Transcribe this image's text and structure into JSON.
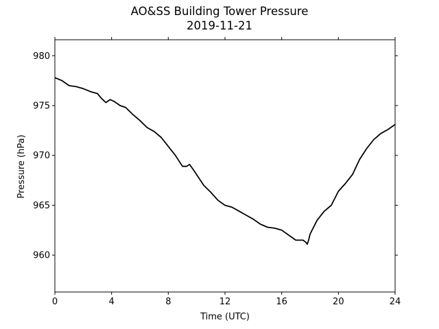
{
  "chart_data": {
    "type": "line",
    "title": "AO&SS Building Tower Pressure",
    "subtitle": "2019-11-21",
    "xlabel": "Time (UTC)",
    "ylabel": "Pressure (hPa)",
    "xlim": [
      0,
      24
    ],
    "ylim": [
      956.3,
      981.6
    ],
    "xticks": [
      0,
      4,
      8,
      12,
      16,
      20,
      24
    ],
    "yticks": [
      960,
      965,
      970,
      975,
      980
    ],
    "grid": false,
    "legend": "none",
    "colors": {
      "line": "#000000",
      "axes": "#000000",
      "background": "#ffffff"
    },
    "series": [
      {
        "x": [
          0,
          0.5,
          1,
          1.5,
          2,
          2.5,
          3,
          3.3,
          3.6,
          3.9,
          4.2,
          4.6,
          5,
          5.5,
          6,
          6.5,
          7,
          7.5,
          8,
          8.5,
          9,
          9.3,
          9.5,
          9.8,
          10.5,
          11,
          11.5,
          12,
          12.5,
          13,
          13.5,
          14,
          14.5,
          15,
          15.5,
          16,
          16.5,
          17,
          17.5,
          17.7,
          17.8,
          17.9,
          18,
          18.5,
          19,
          19.5,
          20,
          20.5,
          21,
          21.5,
          22,
          22.5,
          23,
          23.5,
          24
        ],
        "y": [
          977.8,
          977.5,
          977.0,
          976.9,
          976.7,
          976.4,
          976.2,
          975.7,
          975.3,
          975.6,
          975.4,
          975.0,
          974.8,
          974.1,
          973.5,
          972.8,
          972.4,
          971.8,
          970.9,
          970.0,
          968.9,
          968.9,
          969.1,
          968.5,
          967.0,
          966.3,
          965.5,
          965.0,
          964.8,
          964.4,
          964.0,
          963.6,
          963.1,
          962.8,
          962.7,
          962.5,
          962.0,
          961.5,
          961.5,
          961.3,
          961.1,
          961.5,
          962.1,
          963.5,
          964.4,
          965.0,
          966.4,
          967.2,
          968.1,
          969.6,
          970.7,
          971.6,
          972.2,
          972.6,
          973.1
        ]
      }
    ]
  }
}
